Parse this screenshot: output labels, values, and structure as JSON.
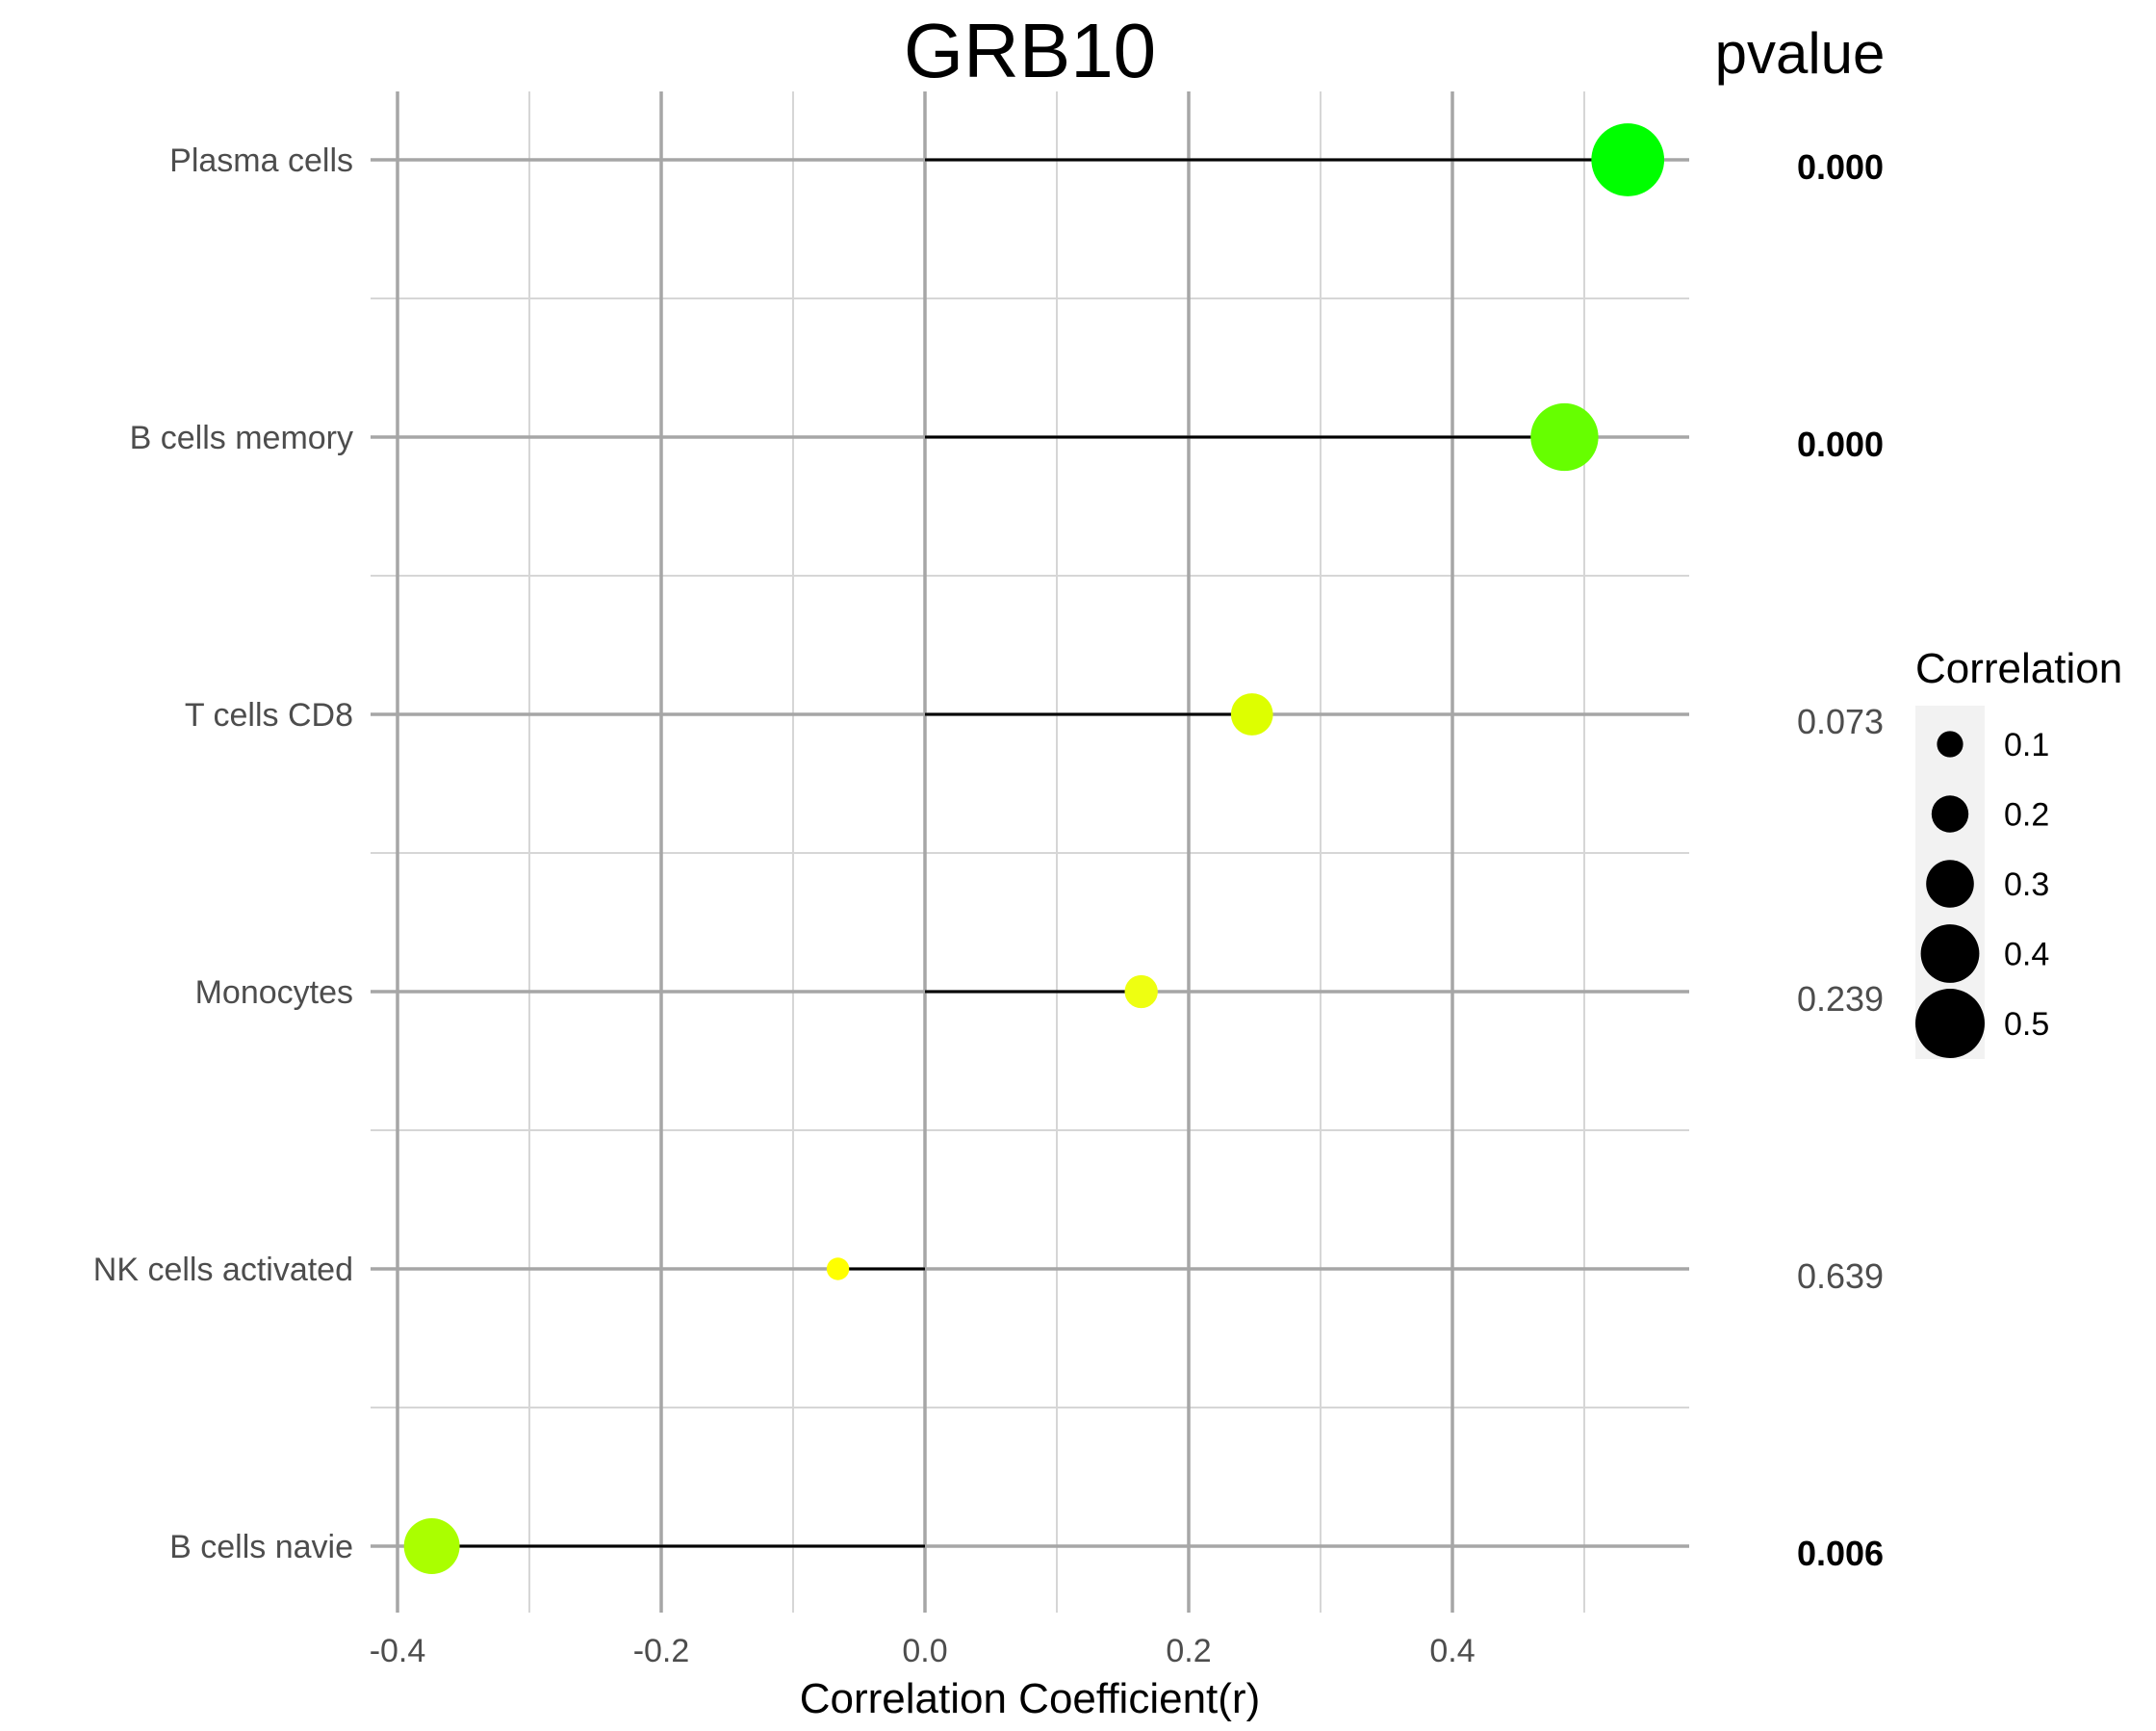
{
  "chart_data": {
    "type": "lollipop",
    "title": "GRB10",
    "xlabel": "Correlation Coefficient(r)",
    "ylabel": "",
    "pvalue_header": "pvalue",
    "xlim": [
      -0.4,
      0.57
    ],
    "x_ticks": [
      -0.4,
      -0.2,
      0.0,
      0.2,
      0.4
    ],
    "x_tick_labels": [
      "-0.4",
      "-0.2",
      "0.0",
      "0.2",
      "0.4"
    ],
    "grid": true,
    "legend_position": "right",
    "categories": [
      "Plasma cells",
      "B cells memory",
      "T cells CD8",
      "Monocytes",
      "NK cells activated",
      "B cells navie"
    ],
    "values": [
      0.533,
      0.485,
      0.248,
      0.164,
      -0.066,
      -0.374
    ],
    "pvalues": [
      "0.000",
      "0.000",
      "0.073",
      "0.239",
      "0.639",
      "0.006"
    ],
    "pvalue_bold": [
      true,
      true,
      false,
      false,
      false,
      true
    ],
    "point_colors": [
      "#00ff00",
      "#66ff00",
      "#ddff00",
      "#eeff11",
      "#ffff00",
      "#aaff00"
    ],
    "stem_color": "#000000",
    "legend": {
      "title": "Correlation",
      "values": [
        0.1,
        0.2,
        0.3,
        0.4,
        0.5
      ],
      "labels": [
        "0.1",
        "0.2",
        "0.3",
        "0.4",
        "0.5"
      ],
      "color": "#000000",
      "background": "#f2f2f2"
    }
  }
}
